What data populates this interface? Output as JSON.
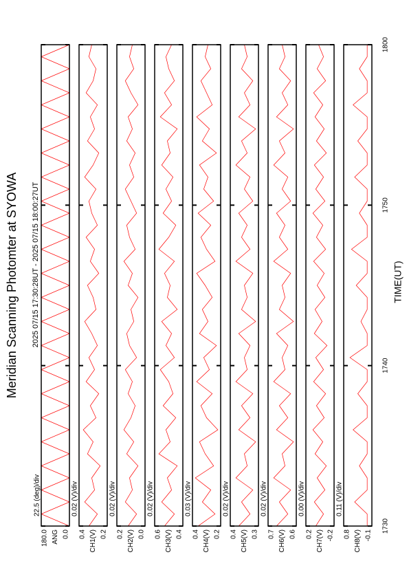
{
  "chart_data": {
    "type": "line",
    "title": "Meridian Scanning Photomter at SYOWA",
    "subtitle": "2025 07/15 17:30:28UT - 2025 07/15 18:00:27UT",
    "x_label": "TIME(UT)",
    "xlim": [
      0,
      30
    ],
    "xticks": [
      {
        "value": 0,
        "label": "1730"
      },
      {
        "value": 10,
        "label": "1740"
      },
      {
        "value": 20,
        "label": "1750"
      },
      {
        "value": 30,
        "label": "1800"
      }
    ],
    "x": [
      0,
      0.75,
      1.5,
      2.25,
      3,
      3.75,
      4.5,
      5.25,
      6,
      6.75,
      7.5,
      8.25,
      9,
      9.75,
      10.5,
      11.25,
      12,
      12.75,
      13.5,
      14.25,
      15,
      15.75,
      16.5,
      17.25,
      18,
      18.75,
      19.5,
      20.25,
      21,
      21.75,
      22.5,
      23.25,
      24,
      24.75,
      25.5,
      26.25,
      27,
      27.75,
      28.5,
      29.25,
      30
    ],
    "series": [
      {
        "name": "ANG",
        "scale_label": "22.5 (deg)/div",
        "color": "#ff0000",
        "ylim": [
          0,
          180
        ],
        "yticks": [
          {
            "value": 0,
            "label": "0.0"
          },
          {
            "value": 180,
            "label": "180.0"
          }
        ],
        "values": [
          0,
          180,
          0,
          180,
          0,
          180,
          0,
          180,
          0,
          180,
          0,
          180,
          0,
          180,
          0,
          180,
          0,
          180,
          0,
          180,
          0,
          180,
          0,
          180,
          0,
          180,
          0,
          180,
          0,
          180,
          0,
          180,
          0,
          180,
          0,
          180,
          0,
          180,
          0,
          180,
          0
        ]
      },
      {
        "name": "CH1(V)",
        "scale_label": "0.02 (V)/div",
        "color": "#ff0000",
        "ylim": [
          0.2,
          0.4
        ],
        "yticks": [
          0.2,
          0.4
        ],
        "values": [
          0.33,
          0.27,
          0.36,
          0.29,
          0.31,
          0.25,
          0.34,
          0.3,
          0.37,
          0.28,
          0.32,
          0.26,
          0.35,
          0.29,
          0.33,
          0.27,
          0.31,
          0.36,
          0.28,
          0.3,
          0.34,
          0.26,
          0.32,
          0.29,
          0.35,
          0.27,
          0.31,
          0.33,
          0.28,
          0.36,
          0.3,
          0.26,
          0.34,
          0.29,
          0.32,
          0.27,
          0.35,
          0.3,
          0.28,
          0.33,
          0.31
        ]
      },
      {
        "name": "CH2(V)",
        "scale_label": "0.02 (V)/div",
        "color": "#ff0000",
        "ylim": [
          0,
          0.2
        ],
        "yticks": [
          {
            "value": 0,
            "label": "0.0"
          },
          0.2
        ],
        "values": [
          0.12,
          0.06,
          0.14,
          0.09,
          0.11,
          0.05,
          0.13,
          0.08,
          0.15,
          0.1,
          0.07,
          0.12,
          0.09,
          0.14,
          0.06,
          0.11,
          0.13,
          0.08,
          0.1,
          0.05,
          0.12,
          0.09,
          0.15,
          0.07,
          0.11,
          0.13,
          0.06,
          0.1,
          0.14,
          0.08,
          0.11,
          0.07,
          0.13,
          0.09,
          0.12,
          0.05,
          0.1,
          0.14,
          0.08,
          0.11,
          0.09
        ]
      },
      {
        "name": "CH3(V)",
        "scale_label": "0.02 (V)/div",
        "color": "#ff0000",
        "ylim": [
          0.4,
          0.6
        ],
        "yticks": [
          0.4,
          0.6
        ],
        "values": [
          0.53,
          0.46,
          0.55,
          0.48,
          0.51,
          0.44,
          0.57,
          0.49,
          0.52,
          0.45,
          0.54,
          0.47,
          0.5,
          0.56,
          0.46,
          0.52,
          0.48,
          0.55,
          0.44,
          0.51,
          0.49,
          0.53,
          0.46,
          0.57,
          0.5,
          0.45,
          0.54,
          0.48,
          0.52,
          0.47,
          0.55,
          0.49,
          0.51,
          0.44,
          0.56,
          0.48,
          0.53,
          0.46,
          0.5,
          0.52,
          0.48
        ]
      },
      {
        "name": "CH4(V)",
        "scale_label": "0.03 (V)/div",
        "color": "#ff0000",
        "ylim": [
          0.2,
          0.4
        ],
        "yticks": [
          0.2,
          0.4
        ],
        "values": [
          0.36,
          0.24,
          0.33,
          0.27,
          0.38,
          0.25,
          0.31,
          0.35,
          0.22,
          0.3,
          0.34,
          0.26,
          0.37,
          0.28,
          0.32,
          0.23,
          0.35,
          0.29,
          0.33,
          0.26,
          0.31,
          0.37,
          0.24,
          0.3,
          0.34,
          0.27,
          0.36,
          0.25,
          0.32,
          0.29,
          0.35,
          0.23,
          0.33,
          0.28,
          0.37,
          0.26,
          0.3,
          0.34,
          0.27,
          0.31,
          0.29
        ]
      },
      {
        "name": "CH5(V)",
        "scale_label": "0.02 (V)/div",
        "color": "#ff0000",
        "ylim": [
          0.3,
          0.4
        ],
        "yticks": [
          0.3,
          0.4
        ],
        "values": [
          0.37,
          0.33,
          0.36,
          0.32,
          0.38,
          0.34,
          0.35,
          0.31,
          0.37,
          0.33,
          0.36,
          0.32,
          0.38,
          0.34,
          0.35,
          0.33,
          0.37,
          0.31,
          0.36,
          0.34,
          0.35,
          0.32,
          0.38,
          0.33,
          0.36,
          0.34,
          0.37,
          0.32,
          0.35,
          0.33,
          0.38,
          0.34,
          0.36,
          0.31,
          0.37,
          0.33,
          0.35,
          0.32,
          0.36,
          0.34,
          0.35
        ]
      },
      {
        "name": "CH6(V)",
        "scale_label": "0.02 (V)/div",
        "color": "#ff0000",
        "ylim": [
          0.6,
          0.7
        ],
        "yticks": [
          0.6,
          0.7
        ],
        "values": [
          0.67,
          0.63,
          0.66,
          0.62,
          0.68,
          0.64,
          0.65,
          0.61,
          0.67,
          0.63,
          0.66,
          0.62,
          0.68,
          0.64,
          0.65,
          0.63,
          0.67,
          0.61,
          0.66,
          0.64,
          0.65,
          0.62,
          0.68,
          0.63,
          0.66,
          0.64,
          0.67,
          0.62,
          0.65,
          0.63,
          0.68,
          0.64,
          0.66,
          0.61,
          0.67,
          0.63,
          0.65,
          0.62,
          0.66,
          0.64,
          0.65
        ]
      },
      {
        "name": "CH7(V)",
        "scale_label": "0.00 (V)/div",
        "color": "#ff0000",
        "ylim": [
          -0.2,
          0.2
        ],
        "yticks": [
          -0.2,
          0.2
        ],
        "values": [
          0.06,
          -0.05,
          0.08,
          -0.07,
          0.04,
          -0.09,
          0.07,
          -0.04,
          0.1,
          -0.06,
          0.05,
          -0.08,
          0.09,
          -0.05,
          0.06,
          -0.1,
          0.08,
          -0.03,
          0.07,
          -0.07,
          0.04,
          -0.06,
          0.09,
          -0.08,
          0.05,
          -0.04,
          0.1,
          -0.07,
          0.06,
          -0.05,
          0.08,
          -0.09,
          0.05,
          -0.06,
          0.07,
          -0.04,
          0.09,
          -0.08,
          0.04,
          -0.05,
          0.02
        ]
      },
      {
        "name": "CH8(V)",
        "scale_label": "0.11 (V)/div",
        "color": "#ff0000",
        "ylim": [
          -0.1,
          0.8
        ],
        "yticks": [
          -0.1,
          0.8
        ],
        "values": [
          0.05,
          0.05,
          0.45,
          0.05,
          0.05,
          0.3,
          0.05,
          0.05,
          0.5,
          0.05,
          0.05,
          0.35,
          0.05,
          0.05,
          0.6,
          0.05,
          0.05,
          0.25,
          0.05,
          0.05,
          0.4,
          0.05,
          0.05,
          0.55,
          0.05,
          0.05,
          0.3,
          0.05,
          0.05,
          0.45,
          0.05,
          0.05,
          0.35,
          0.05,
          0.05,
          0.5,
          0.05,
          0.05,
          0.3,
          0.05,
          0.05
        ]
      }
    ]
  }
}
